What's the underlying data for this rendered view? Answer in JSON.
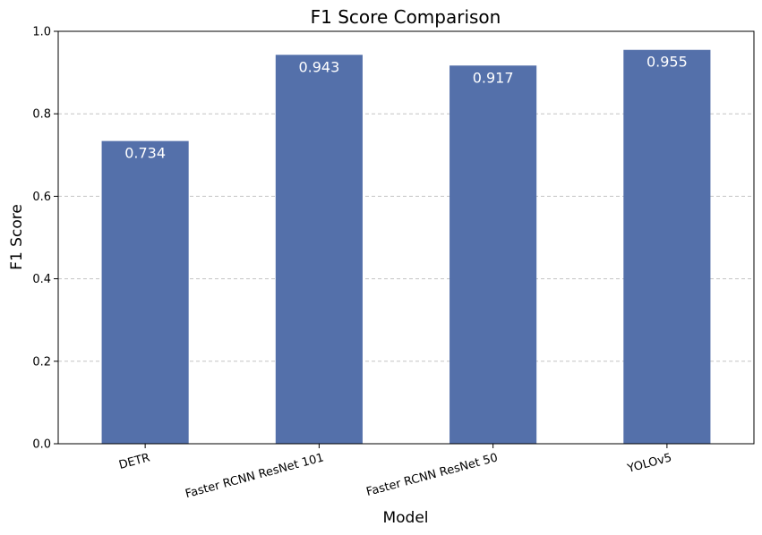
{
  "chart_data": {
    "type": "bar",
    "title": "F1 Score Comparison",
    "xlabel": "Model",
    "ylabel": "F1 Score",
    "categories": [
      "DETR",
      "Faster RCNN ResNet 101",
      "Faster RCNN ResNet 50",
      "YOLOv5"
    ],
    "values": [
      0.734,
      0.943,
      0.917,
      0.955
    ],
    "value_labels": [
      "0.734",
      "0.943",
      "0.917",
      "0.955"
    ],
    "ylim": [
      0,
      1.0
    ],
    "yticks": [
      0.0,
      0.2,
      0.4,
      0.6,
      0.8,
      1.0
    ],
    "ytick_labels": [
      "0.0",
      "0.2",
      "0.4",
      "0.6",
      "0.8",
      "1.0"
    ],
    "grid": "y-dashed",
    "legend": "none",
    "bar_color": "#5470aa",
    "grid_color": "#c4c4c4",
    "value_label_color": "#ffffff"
  }
}
